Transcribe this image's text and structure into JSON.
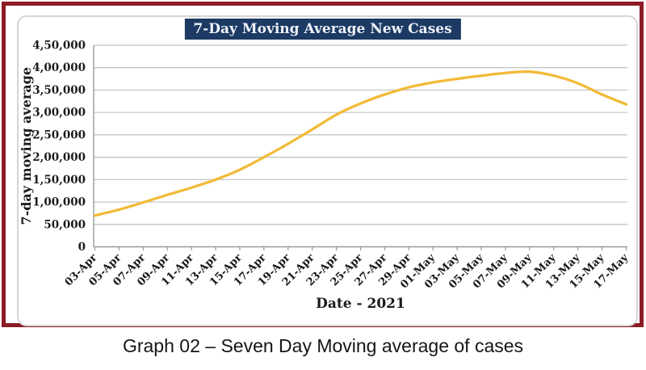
{
  "page": {
    "caption": "Graph 02 – Seven Day Moving average of cases"
  },
  "chart": {
    "colors": {
      "outer_border": "#8c1b25",
      "title_bg": "#1c3a63",
      "title_text": "#eef1f8",
      "series_line": "#f2bb38",
      "gridline": "#c0c0c0",
      "axis": "#999999",
      "tick_text": "#1a1a1a"
    }
  },
  "chart_data": {
    "type": "line",
    "title": "7-Day Moving Average New Cases",
    "xlabel": "Date - 2021",
    "ylabel": "7-day moving average",
    "categories": [
      "03-Apr",
      "05-Apr",
      "07-Apr",
      "09-Apr",
      "11-Apr",
      "13-Apr",
      "15-Apr",
      "17-Apr",
      "19-Apr",
      "21-Apr",
      "23-Apr",
      "25-Apr",
      "27-Apr",
      "29-Apr",
      "01-May",
      "03-May",
      "05-May",
      "07-May",
      "09-May",
      "11-May",
      "13-May",
      "15-May",
      "17-May"
    ],
    "series": [
      {
        "name": "7-day moving average of new cases",
        "values": [
          70000,
          83000,
          99000,
          116000,
          132000,
          150000,
          172000,
          200000,
          230000,
          262000,
          295000,
          320000,
          340000,
          356000,
          367000,
          375000,
          382000,
          388000,
          391000,
          382000,
          365000,
          340000,
          318000
        ]
      }
    ],
    "ylim": [
      0,
      450000
    ],
    "y_tick_step": 50000,
    "y_tick_labels": [
      "0",
      "50,000",
      "1,00,000",
      "1,50,000",
      "2,00,000",
      "2,50,000",
      "3,00,000",
      "3,50,000",
      "4,00,000",
      "4,50,000"
    ],
    "grid": true,
    "legend": false
  }
}
